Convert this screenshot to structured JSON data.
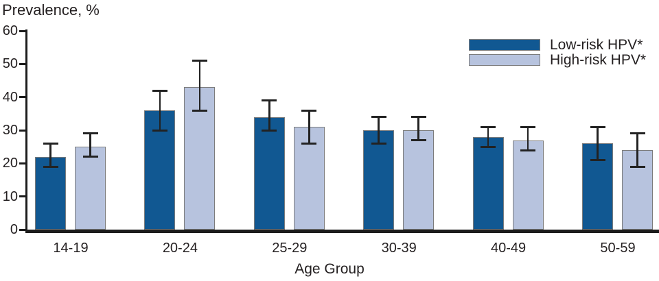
{
  "figure": {
    "title": "Prevalence, %",
    "x_axis_title": "Age Group"
  },
  "legend": {
    "items": [
      {
        "label": "Low-risk HPV*",
        "color": "#115892"
      },
      {
        "label": "High-risk HPV*",
        "color": "#b7c3de"
      }
    ]
  },
  "chart_data": {
    "type": "bar",
    "title": "Prevalence, %",
    "xlabel": "Age Group",
    "ylabel": "Prevalence, %",
    "ylim": [
      0,
      60
    ],
    "ytick_step": 10,
    "yticks": [
      0,
      10,
      20,
      30,
      40,
      50,
      60
    ],
    "grid": false,
    "error_bars": true,
    "legend_position": "top-right",
    "categories": [
      "14-19",
      "20-24",
      "25-29",
      "30-39",
      "40-49",
      "50-59"
    ],
    "series": [
      {
        "name": "Low-risk HPV*",
        "color": "#115892",
        "values": [
          22,
          36,
          34,
          30,
          28,
          26
        ],
        "ci_low": [
          19,
          30,
          30,
          26,
          25,
          21
        ],
        "ci_high": [
          26,
          42,
          39,
          34,
          31,
          31
        ]
      },
      {
        "name": "High-risk HPV*",
        "color": "#b7c3de",
        "values": [
          25,
          43,
          31,
          30,
          27,
          24
        ],
        "ci_low": [
          22,
          36,
          26,
          27,
          24,
          19
        ],
        "ci_high": [
          29,
          51,
          36,
          34,
          31,
          29
        ]
      }
    ]
  },
  "style": {
    "bar_border_color": "#7c7c7c",
    "error_bar_color": "#222222",
    "axis_color": "#1c1c1c",
    "text_color": "#231f20",
    "background": "#ffffff"
  }
}
